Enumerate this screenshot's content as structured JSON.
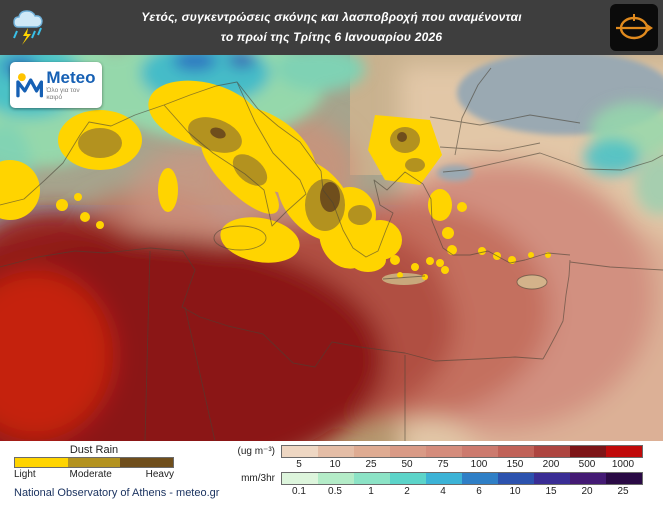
{
  "header": {
    "title_line1": "Υετός, συγκεντρώσεις σκόνης και λασποβροχή που αναμένονται",
    "title_line2": "το πρωί της Τρίτης 6 Ιανουαρίου 2026",
    "bg_color": "#3e3e3e"
  },
  "logo": {
    "brand": "Meteo",
    "tagline": "Όλο για τον καιρό"
  },
  "legend": {
    "dust_rain": {
      "title": "Dust Rain",
      "items": [
        {
          "label": "Light",
          "color": "#ffd400"
        },
        {
          "label": "Moderate",
          "color": "#b3921f"
        },
        {
          "label": "Heavy",
          "color": "#6f4e1c"
        }
      ]
    },
    "dust_scale": {
      "unit": "(ug m⁻³)",
      "ticks": [
        "5",
        "10",
        "25",
        "50",
        "75",
        "100",
        "150",
        "200",
        "500",
        "1000"
      ],
      "colors": [
        "#eed7c3",
        "#e4bda6",
        "#deab92",
        "#d99a86",
        "#d48c7c",
        "#cc7a6e",
        "#c06258",
        "#ad4540",
        "#7d1517",
        "#c00a0a"
      ]
    },
    "rain_scale": {
      "unit": "mm/3hr",
      "ticks": [
        "0.1",
        "0.5",
        "1",
        "2",
        "4",
        "6",
        "10",
        "15",
        "20",
        "25"
      ],
      "colors": [
        "#ddf5dc",
        "#b4ecc8",
        "#8ce3c6",
        "#5cd4c9",
        "#3cb3d6",
        "#2f7fc6",
        "#2c52ae",
        "#3a2d95",
        "#441a74",
        "#2a0a45"
      ]
    },
    "attribution": "National Observatory of Athens - meteo.gr"
  }
}
